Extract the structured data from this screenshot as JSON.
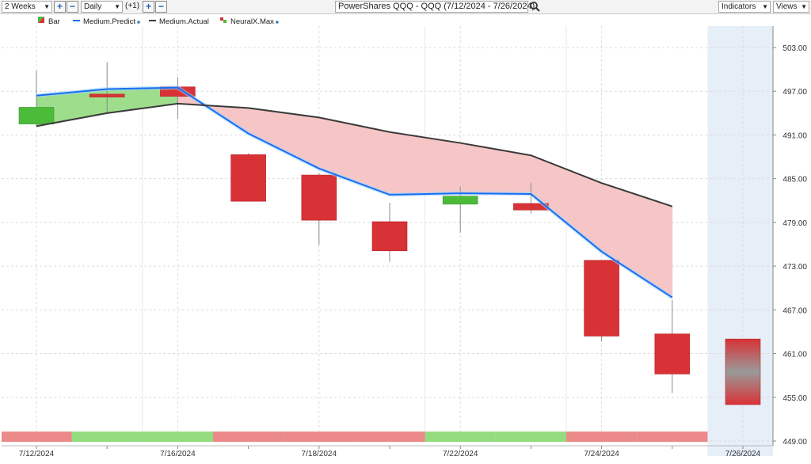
{
  "toolbar": {
    "range": "2 Weeks",
    "interval": "Daily",
    "shift": "(+1)",
    "title": "PowerShares QQQ - QQQ (7/12/2024 - 7/26/2024)",
    "indicators": "Indicators",
    "views": "Views"
  },
  "colors": {
    "up": "#4dbb3a",
    "down": "#d83236",
    "predict": "#1a6ef0",
    "actual": "#3a3a3a",
    "band_green": "#9edd8c",
    "band_red": "#f6c6c6",
    "strip_green": "#94dc80",
    "strip_red": "#ec8a8a",
    "forecast_bg": "#e6eef8"
  },
  "chart_data": {
    "type": "candlestick",
    "legend": [
      "Bar",
      "Medium.Predict",
      "Medium.Actual",
      "NeuralX.Max"
    ],
    "ylim": [
      449,
      503
    ],
    "y_ticks": [
      "503.00",
      "497.00",
      "491.00",
      "485.00",
      "479.00",
      "473.00",
      "467.00",
      "461.00",
      "455.00",
      "449.00"
    ],
    "x_labels": [
      "7/12/2024",
      "7/16/2024",
      "7/18/2024",
      "7/22/2024",
      "7/24/2024",
      "7/26/2024"
    ],
    "x_label_days": [
      0,
      2,
      4,
      6,
      8,
      10
    ],
    "grid": true,
    "candles": [
      {
        "open": 492.5,
        "close": 494.8,
        "high": 499.8,
        "low": 492.2
      },
      {
        "open": 496.6,
        "close": 496.2,
        "high": 501.0,
        "low": 493.9
      },
      {
        "open": 497.6,
        "close": 496.3,
        "high": 498.9,
        "low": 493.2
      },
      {
        "open": 488.3,
        "close": 481.9,
        "high": 488.5,
        "low": 481.9
      },
      {
        "open": 485.5,
        "close": 479.3,
        "high": 485.8,
        "low": 475.9
      },
      {
        "open": 479.1,
        "close": 475.1,
        "high": 481.7,
        "low": 473.6
      },
      {
        "open": 481.5,
        "close": 482.6,
        "high": 483.9,
        "low": 477.6
      },
      {
        "open": 481.6,
        "close": 480.7,
        "high": 484.4,
        "low": 480.2
      },
      {
        "open": 473.8,
        "close": 463.4,
        "high": 473.8,
        "low": 462.7
      },
      {
        "open": 463.7,
        "close": 458.2,
        "high": 468.4,
        "low": 455.6
      }
    ],
    "forecast": {
      "top": 463.0,
      "bottom": 454.0
    },
    "series": [
      {
        "name": "Medium.Predict",
        "values": [
          496.4,
          497.3,
          497.5,
          491.2,
          486.4,
          482.8,
          483.0,
          482.9,
          475.0,
          468.7
        ]
      },
      {
        "name": "Medium.Actual",
        "values": [
          492.2,
          494.0,
          495.3,
          494.7,
          493.4,
          491.4,
          489.9,
          488.2,
          484.4,
          481.2
        ]
      }
    ],
    "signal_strip": [
      "red",
      "green",
      "green",
      "red",
      "red",
      "red",
      "green",
      "green",
      "red",
      "red"
    ]
  }
}
